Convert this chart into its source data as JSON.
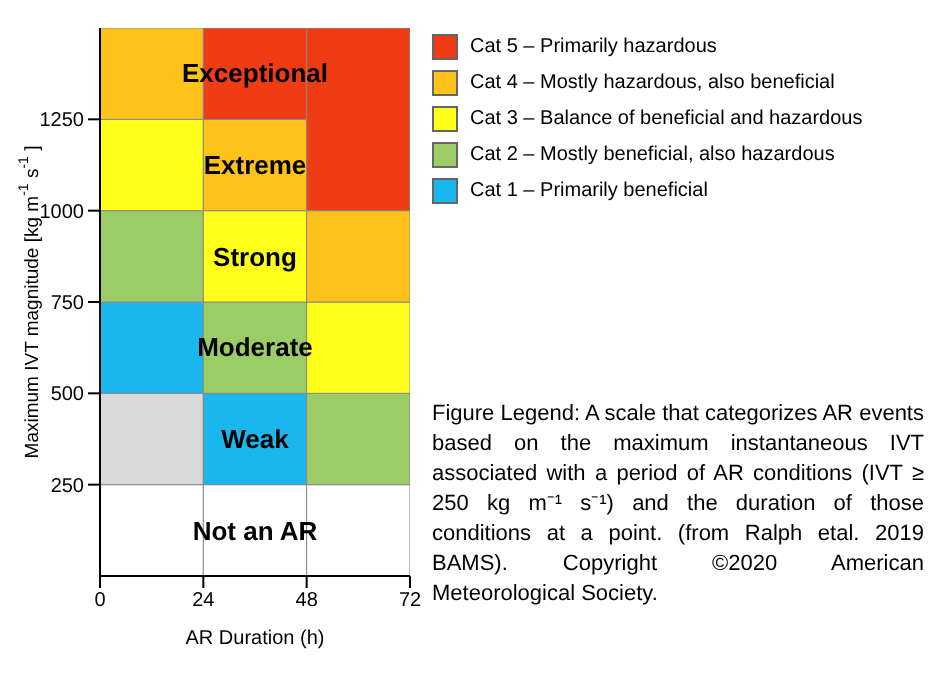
{
  "chart_data": {
    "type": "bar",
    "stacked": true,
    "xlabel": "AR Duration (h)",
    "ylabel": "Maximum IVT magnitude [kg m$^{-1}$ s$^{-1}$]",
    "x": [
      12,
      36,
      60
    ],
    "xlim": [
      0,
      72
    ],
    "xticks": [
      0,
      24,
      48,
      72
    ],
    "ylim": [
      0,
      1500
    ],
    "yticks": [
      250,
      500,
      750,
      1000,
      1250
    ],
    "legend": "right",
    "series": [
      {
        "color": "#ffffff",
        "values": [
          250,
          250,
          250
        ]
      },
      {
        "color": "#d9d9d9",
        "values": [
          250,
          0,
          0
        ]
      },
      {
        "name": "Cat 1 – Primarily beneficial",
        "color": "#1ab6ee",
        "values": [
          250,
          250,
          0
        ]
      },
      {
        "name": "Cat 2 – Mostly beneficial, also hazardous",
        "color": "#9ccc65",
        "values": [
          250,
          250,
          250
        ]
      },
      {
        "name": "Cat 3 – Balance of beneficial and hazardous",
        "color": "#ffff1a",
        "values": [
          250,
          250,
          250
        ]
      },
      {
        "name": "Cat 4 – Mostly hazardous, also beneficial",
        "color": "#ffc21a",
        "values": [
          250,
          250,
          250
        ]
      },
      {
        "name": "Cat 5 – Primarily hazardous",
        "color": "#f03c14",
        "values": [
          0,
          250,
          500
        ]
      }
    ],
    "annotations": [
      "Exceptional",
      "Extreme",
      "Strong",
      "Moderate",
      "Weak",
      "Not an AR",
      "Figure Legend: A scale that categorizes AR events based on the maximum instantaneous IVT associated with a period of AR conditions (IVT ≥ 250 kg m⁻¹ s⁻¹) and the duration of those conditions at a point. (from Ralph etal. 2019 BAMS). Copyright ©2020 American Meteorological Society."
    ]
  }
}
